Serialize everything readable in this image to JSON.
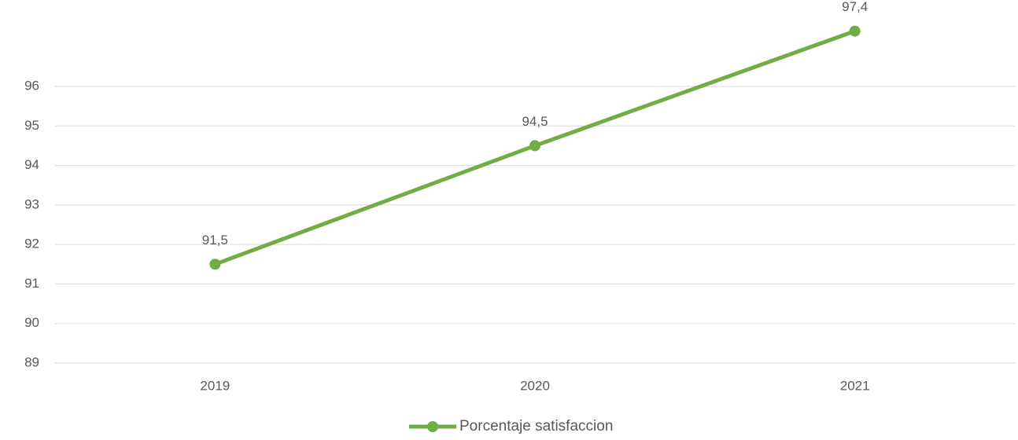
{
  "chart_data": {
    "type": "line",
    "categories": [
      "2019",
      "2020",
      "2021"
    ],
    "series": [
      {
        "name": "Porcentaje satisfaccion",
        "color": "#70ad47",
        "values": [
          91.5,
          94.5,
          97.4
        ],
        "value_labels": [
          "91,5",
          "94,5",
          "97,4"
        ]
      }
    ],
    "ylim": [
      89,
      96
    ],
    "yticks": [
      89,
      90,
      91,
      92,
      93,
      94,
      95,
      96
    ],
    "grid": true,
    "legend": "bottom"
  }
}
